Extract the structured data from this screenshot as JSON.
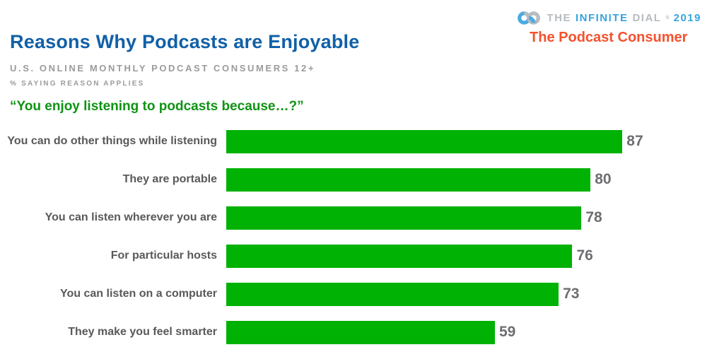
{
  "header": {
    "title": "Reasons Why Podcasts are Enjoyable",
    "subtitle": "U.S. ONLINE MONTHLY PODCAST CONSUMERS 12+",
    "subnote": "% SAYING REASON APPLIES",
    "question": "“You enjoy listening to podcasts because…?”"
  },
  "brand": {
    "logo": {
      "word_the": "THE",
      "word_infinite": "INFINITE",
      "word_dial": "DIAL",
      "reg_mark": "®",
      "year": "2019"
    },
    "tagline": "The Podcast Consumer"
  },
  "chart_data": {
    "type": "bar",
    "orientation": "horizontal",
    "title": "Reasons Why Podcasts are Enjoyable",
    "subtitle": "U.S. ONLINE MONTHLY PODCAST CONSUMERS 12+",
    "unit_note": "% SAYING REASON APPLIES",
    "categories": [
      "You can do other things while listening",
      "They are portable",
      "You can listen wherever you are",
      "For particular hosts",
      "You can listen on a computer",
      "They make you feel smarter"
    ],
    "values": [
      87,
      80,
      78,
      76,
      73,
      59
    ],
    "xlim": [
      0,
      100
    ],
    "grid": false,
    "legend": false,
    "value_labels": true,
    "bar_color": "#00b204"
  },
  "colors": {
    "title_blue": "#1160a7",
    "bar_green": "#00b204",
    "question_green": "#0f9314",
    "tagline_orange": "#f4512e",
    "logo_blue": "#36a4dd",
    "logo_gray": "#b7bcc1",
    "category_gray": "#58595b",
    "value_gray": "#6d6e71",
    "subtitle_gray": "#9b9b9b"
  }
}
